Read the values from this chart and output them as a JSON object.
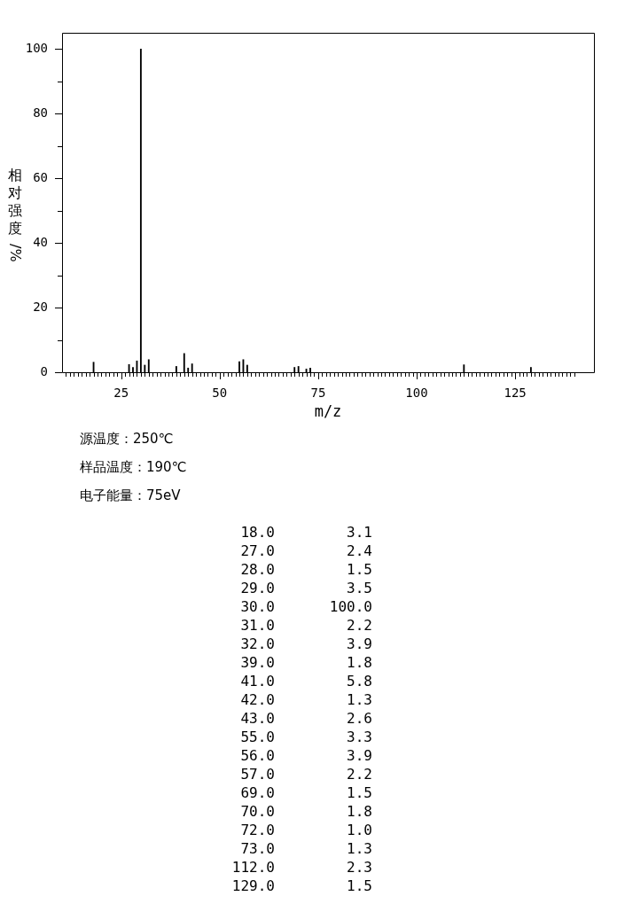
{
  "chart_data": {
    "type": "bar",
    "xlabel": "m/z",
    "ylabel": "相对强度/%",
    "x": [
      18,
      27,
      28,
      29,
      30,
      31,
      32,
      39,
      41,
      42,
      43,
      55,
      56,
      57,
      69,
      70,
      72,
      73,
      112,
      129
    ],
    "values": [
      3.1,
      2.4,
      1.5,
      3.5,
      100,
      2.2,
      3.9,
      1.8,
      5.8,
      1.3,
      2.6,
      3.3,
      3.9,
      2.2,
      1.5,
      1.8,
      1.0,
      1.3,
      2.3,
      1.5
    ],
    "color": "#000000",
    "xlim": [
      10,
      145
    ],
    "ylim": [
      0,
      105
    ],
    "xticks": [
      {
        "value": 11,
        "label": null
      },
      {
        "value": 12,
        "label": null
      },
      {
        "value": 13,
        "label": null
      },
      {
        "value": 14,
        "label": null
      },
      {
        "value": 15,
        "label": null
      },
      {
        "value": 16,
        "label": null
      },
      {
        "value": 17,
        "label": null
      },
      {
        "value": 18,
        "label": null
      },
      {
        "value": 19,
        "label": null
      },
      {
        "value": 20,
        "label": null
      },
      {
        "value": 21,
        "label": null
      },
      {
        "value": 22,
        "label": null
      },
      {
        "value": 23,
        "label": null
      },
      {
        "value": 24,
        "label": null
      },
      25,
      {
        "value": 26,
        "label": null
      },
      {
        "value": 27,
        "label": null
      },
      {
        "value": 28,
        "label": null
      },
      {
        "value": 29,
        "label": null
      },
      {
        "value": 30,
        "label": null
      },
      {
        "value": 31,
        "label": null
      },
      {
        "value": 32,
        "label": null
      },
      {
        "value": 33,
        "label": null
      },
      {
        "value": 34,
        "label": null
      },
      {
        "value": 35,
        "label": null
      },
      {
        "value": 36,
        "label": null
      },
      {
        "value": 37,
        "label": null
      },
      {
        "value": 38,
        "label": null
      },
      {
        "value": 39,
        "label": null
      },
      {
        "value": 40,
        "label": null
      },
      {
        "value": 41,
        "label": null
      },
      {
        "value": 42,
        "label": null
      },
      {
        "value": 43,
        "label": null
      },
      {
        "value": 44,
        "label": null
      },
      {
        "value": 45,
        "label": null
      },
      {
        "value": 46,
        "label": null
      },
      {
        "value": 47,
        "label": null
      },
      {
        "value": 48,
        "label": null
      },
      {
        "value": 49,
        "label": null
      },
      50,
      {
        "value": 51,
        "label": null
      },
      {
        "value": 52,
        "label": null
      },
      {
        "value": 53,
        "label": null
      },
      {
        "value": 54,
        "label": null
      },
      {
        "value": 55,
        "label": null
      },
      {
        "value": 56,
        "label": null
      },
      {
        "value": 57,
        "label": null
      },
      {
        "value": 58,
        "label": null
      },
      {
        "value": 59,
        "label": null
      },
      {
        "value": 60,
        "label": null
      },
      {
        "value": 61,
        "label": null
      },
      {
        "value": 62,
        "label": null
      },
      {
        "value": 63,
        "label": null
      },
      {
        "value": 64,
        "label": null
      },
      {
        "value": 65,
        "label": null
      },
      {
        "value": 66,
        "label": null
      },
      {
        "value": 67,
        "label": null
      },
      {
        "value": 68,
        "label": null
      },
      {
        "value": 69,
        "label": null
      },
      {
        "value": 70,
        "label": null
      },
      {
        "value": 71,
        "label": null
      },
      {
        "value": 72,
        "label": null
      },
      {
        "value": 73,
        "label": null
      },
      {
        "value": 74,
        "label": null
      },
      75,
      {
        "value": 76,
        "label": null
      },
      {
        "value": 77,
        "label": null
      },
      {
        "value": 78,
        "label": null
      },
      {
        "value": 79,
        "label": null
      },
      {
        "value": 80,
        "label": null
      },
      {
        "value": 81,
        "label": null
      },
      {
        "value": 82,
        "label": null
      },
      {
        "value": 83,
        "label": null
      },
      {
        "value": 84,
        "label": null
      },
      {
        "value": 85,
        "label": null
      },
      {
        "value": 86,
        "label": null
      },
      {
        "value": 87,
        "label": null
      },
      {
        "value": 88,
        "label": null
      },
      {
        "value": 89,
        "label": null
      },
      {
        "value": 90,
        "label": null
      },
      {
        "value": 91,
        "label": null
      },
      {
        "value": 92,
        "label": null
      },
      {
        "value": 93,
        "label": null
      },
      {
        "value": 94,
        "label": null
      },
      {
        "value": 95,
        "label": null
      },
      {
        "value": 96,
        "label": null
      },
      {
        "value": 97,
        "label": null
      },
      {
        "value": 98,
        "label": null
      },
      {
        "value": 99,
        "label": null
      },
      100,
      {
        "value": 101,
        "label": null
      },
      {
        "value": 102,
        "label": null
      },
      {
        "value": 103,
        "label": null
      },
      {
        "value": 104,
        "label": null
      },
      {
        "value": 105,
        "label": null
      },
      {
        "value": 106,
        "label": null
      },
      {
        "value": 107,
        "label": null
      },
      {
        "value": 108,
        "label": null
      },
      {
        "value": 109,
        "label": null
      },
      {
        "value": 110,
        "label": null
      },
      {
        "value": 111,
        "label": null
      },
      {
        "value": 112,
        "label": null
      },
      {
        "value": 113,
        "label": null
      },
      {
        "value": 114,
        "label": null
      },
      {
        "value": 115,
        "label": null
      },
      {
        "value": 116,
        "label": null
      },
      {
        "value": 117,
        "label": null
      },
      {
        "value": 118,
        "label": null
      },
      {
        "value": 119,
        "label": null
      },
      {
        "value": 120,
        "label": null
      },
      {
        "value": 121,
        "label": null
      },
      {
        "value": 122,
        "label": null
      },
      {
        "value": 123,
        "label": null
      },
      {
        "value": 124,
        "label": null
      },
      125,
      {
        "value": 126,
        "label": null
      },
      {
        "value": 127,
        "label": null
      },
      {
        "value": 128,
        "label": null
      },
      {
        "value": 129,
        "label": null
      },
      {
        "value": 130,
        "label": null
      },
      {
        "value": 131,
        "label": null
      },
      {
        "value": 132,
        "label": null
      },
      {
        "value": 133,
        "label": null
      },
      {
        "value": 134,
        "label": null
      },
      {
        "value": 135,
        "label": null
      },
      {
        "value": 136,
        "label": null
      },
      {
        "value": 137,
        "label": null
      },
      {
        "value": 138,
        "label": null
      },
      {
        "value": 139,
        "label": null
      },
      {
        "value": 140,
        "label": null
      }
    ],
    "yticks": [
      0,
      {
        "value": 10,
        "label": null
      },
      20,
      {
        "value": 30,
        "label": null
      },
      40,
      {
        "value": 50,
        "label": null
      },
      60,
      {
        "value": 70,
        "label": null
      },
      80,
      {
        "value": 90,
        "label": null
      },
      100
    ],
    "annotations": [
      "源温度：250℃",
      "样品温度：190℃",
      "电子能量：75eV",
      "18.0",
      "3.1",
      "27.0",
      "2.4",
      "28.0",
      "1.5",
      "29.0",
      "3.5",
      "30.0",
      "100.0",
      "31.0",
      "2.2",
      "32.0",
      "3.9",
      "39.0",
      "1.8",
      "41.0",
      "5.8",
      "42.0",
      "1.3",
      "43.0",
      "2.6",
      "55.0",
      "3.3",
      "56.0",
      "3.9",
      "57.0",
      "2.2",
      "69.0",
      "1.5",
      "70.0",
      "1.8",
      "72.0",
      "1.0",
      "73.0",
      "1.3",
      "112.0",
      "2.3",
      "129.0",
      "1.5"
    ]
  }
}
